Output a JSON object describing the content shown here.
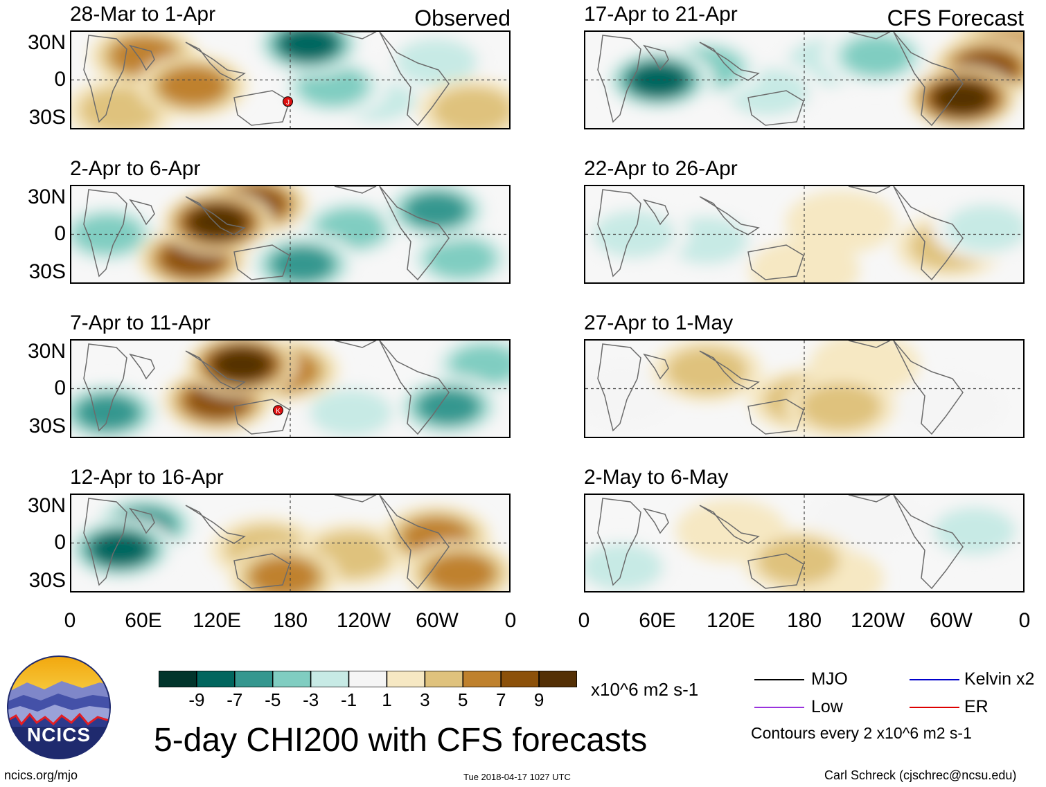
{
  "chart_data": {
    "type": "heatmap",
    "title": "5-day CHI200 with CFS forecasts",
    "variable": "CHI200 anomaly",
    "units": "x10^6 m2 s-1",
    "column_headers": {
      "left": "Observed",
      "right": "CFS Forecast"
    },
    "lat_ticks": [
      "30N",
      "0",
      "30S"
    ],
    "lon_ticks": [
      "0",
      "60E",
      "120E",
      "180",
      "120W",
      "60W",
      "0"
    ],
    "panels": [
      {
        "period": "28-Mar to 1-Apr",
        "kind": "observed",
        "anomalies": [
          {
            "lon": 60,
            "lat": 20,
            "value": 6
          },
          {
            "lon": 100,
            "lat": -5,
            "value": 6
          },
          {
            "lon": 40,
            "lat": -25,
            "value": 3
          },
          {
            "lon": 195,
            "lat": 30,
            "value": -9
          },
          {
            "lon": 215,
            "lat": -5,
            "value": -5
          },
          {
            "lon": 250,
            "lat": -15,
            "value": -3
          },
          {
            "lon": 300,
            "lat": 15,
            "value": -3
          },
          {
            "lon": 330,
            "lat": -25,
            "value": 3
          }
        ],
        "storm_marker": {
          "label": "J",
          "lon": 178,
          "lat": -18
        }
      },
      {
        "period": "2-Apr to 6-Apr",
        "kind": "observed",
        "anomalies": [
          {
            "lon": 120,
            "lat": 10,
            "value": 9
          },
          {
            "lon": 100,
            "lat": -20,
            "value": 7
          },
          {
            "lon": 150,
            "lat": 25,
            "value": 7
          },
          {
            "lon": 30,
            "lat": 0,
            "value": -5
          },
          {
            "lon": 190,
            "lat": -25,
            "value": -7
          },
          {
            "lon": 230,
            "lat": 5,
            "value": -5
          },
          {
            "lon": 300,
            "lat": 20,
            "value": -7
          },
          {
            "lon": 320,
            "lat": -20,
            "value": -5
          }
        ]
      },
      {
        "period": "7-Apr to 11-Apr",
        "kind": "observed",
        "anomalies": [
          {
            "lon": 140,
            "lat": 20,
            "value": 9
          },
          {
            "lon": 120,
            "lat": -10,
            "value": 7
          },
          {
            "lon": 175,
            "lat": 15,
            "value": 5
          },
          {
            "lon": 30,
            "lat": -20,
            "value": -7
          },
          {
            "lon": 230,
            "lat": -20,
            "value": -3
          },
          {
            "lon": 310,
            "lat": -15,
            "value": -7
          },
          {
            "lon": 340,
            "lat": 20,
            "value": -5
          }
        ],
        "storm_marker": {
          "label": "K",
          "lon": 170,
          "lat": -18
        }
      },
      {
        "period": "12-Apr to 16-Apr",
        "kind": "observed",
        "anomalies": [
          {
            "lon": 40,
            "lat": -5,
            "value": -9
          },
          {
            "lon": 60,
            "lat": 15,
            "value": -7
          },
          {
            "lon": 160,
            "lat": -5,
            "value": 3
          },
          {
            "lon": 175,
            "lat": -28,
            "value": 5
          },
          {
            "lon": 230,
            "lat": -10,
            "value": 3
          },
          {
            "lon": 300,
            "lat": 5,
            "value": 5
          },
          {
            "lon": 320,
            "lat": -25,
            "value": 5
          }
        ]
      },
      {
        "period": "17-Apr to 21-Apr",
        "kind": "forecast",
        "anomalies": [
          {
            "lon": 60,
            "lat": 0,
            "value": -9
          },
          {
            "lon": 100,
            "lat": 10,
            "value": -5
          },
          {
            "lon": 240,
            "lat": 20,
            "value": -5
          },
          {
            "lon": 200,
            "lat": 15,
            "value": -3
          },
          {
            "lon": 330,
            "lat": 10,
            "value": 7
          },
          {
            "lon": 310,
            "lat": -15,
            "value": 9
          },
          {
            "lon": 345,
            "lat": 25,
            "value": 5
          },
          {
            "lon": 150,
            "lat": -10,
            "value": -3
          }
        ]
      },
      {
        "period": "22-Apr to 26-Apr",
        "kind": "forecast",
        "anomalies": [
          {
            "lon": 100,
            "lat": -5,
            "value": -3
          },
          {
            "lon": 40,
            "lat": 0,
            "value": -3
          },
          {
            "lon": 300,
            "lat": -10,
            "value": 3
          },
          {
            "lon": 330,
            "lat": 5,
            "value": -3
          },
          {
            "lon": 210,
            "lat": 10,
            "value": 1
          },
          {
            "lon": 180,
            "lat": -30,
            "value": 1
          }
        ]
      },
      {
        "period": "27-Apr to 1-May",
        "kind": "forecast",
        "anomalies": [
          {
            "lon": 100,
            "lat": 15,
            "value": 3
          },
          {
            "lon": 180,
            "lat": -10,
            "value": 3
          },
          {
            "lon": 210,
            "lat": -15,
            "value": 3
          },
          {
            "lon": 300,
            "lat": -15,
            "value": -1
          },
          {
            "lon": 30,
            "lat": -5,
            "value": -1
          },
          {
            "lon": 230,
            "lat": 20,
            "value": 1
          }
        ]
      },
      {
        "period": "2-May to 6-May",
        "kind": "forecast",
        "anomalies": [
          {
            "lon": 120,
            "lat": 10,
            "value": 1
          },
          {
            "lon": 175,
            "lat": -15,
            "value": 3
          },
          {
            "lon": 200,
            "lat": -30,
            "value": 1
          },
          {
            "lon": 30,
            "lat": -20,
            "value": -3
          },
          {
            "lon": 320,
            "lat": 10,
            "value": -3
          },
          {
            "lon": 230,
            "lat": 20,
            "value": -1
          }
        ]
      }
    ],
    "colorbar": {
      "labels": [
        "-9",
        "-7",
        "-5",
        "-3",
        "-1",
        "1",
        "3",
        "5",
        "7",
        "9"
      ],
      "colors": [
        "#01352c",
        "#01665e",
        "#35978f",
        "#80cdc1",
        "#c7eae5",
        "#f5f5f5",
        "#f6e8c3",
        "#dfc27d",
        "#bf812d",
        "#8c510a",
        "#543005"
      ]
    },
    "legend": [
      {
        "label": "MJO",
        "color": "#000000"
      },
      {
        "label": "Kelvin x2",
        "color": "#0000cc"
      },
      {
        "label": "Low",
        "color": "#9933dd"
      },
      {
        "label": "ER",
        "color": "#dd0000"
      }
    ],
    "contour_note": "Contours every 2 x10^6 m2 s-1"
  },
  "footer": {
    "logo_text": "NCICS",
    "url": "ncics.org/mjo",
    "timestamp": "Tue 2018-04-17 1027 UTC",
    "credit": "Carl Schreck (cjschrec@ncsu.edu)"
  }
}
